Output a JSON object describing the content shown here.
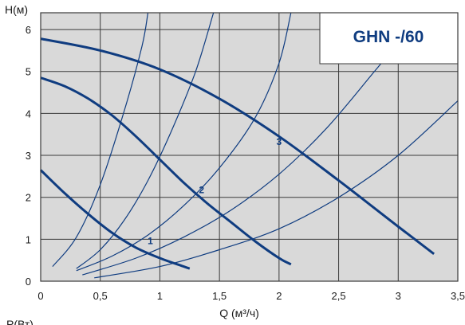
{
  "chart_data": {
    "type": "line",
    "title": "GHN -/60",
    "xlabel": "Q (м³/ч)",
    "ylabel": "H(м)",
    "next_axis_label": "P(Вт)",
    "xlim": [
      0,
      3.5
    ],
    "ylim": [
      0,
      6.4
    ],
    "x_ticks": [
      "0",
      "0,5",
      "1",
      "1,5",
      "2",
      "2,5",
      "3",
      "3,5"
    ],
    "x_tick_values": [
      0,
      0.5,
      1,
      1.5,
      2,
      2.5,
      3,
      3.5
    ],
    "y_ticks": [
      "0",
      "1",
      "2",
      "3",
      "4",
      "5",
      "6"
    ],
    "y_tick_values": [
      0,
      1,
      2,
      3,
      4,
      5,
      6
    ],
    "grid": true,
    "colors": {
      "plot_bg": "#d9d9d9",
      "grid": "#3a3a3a",
      "curve": "#0f3c80",
      "title": "#0f3c80"
    },
    "series": [
      {
        "name": "1",
        "x": [
          0,
          0.2,
          0.4,
          0.6,
          0.8,
          1.0,
          1.2,
          1.25
        ],
        "y": [
          2.65,
          2.1,
          1.6,
          1.15,
          0.8,
          0.55,
          0.35,
          0.3
        ]
      },
      {
        "name": "2",
        "x": [
          0,
          0.2,
          0.4,
          0.6,
          0.8,
          1.0,
          1.2,
          1.4,
          1.6,
          1.8,
          2.0,
          2.1
        ],
        "y": [
          4.85,
          4.65,
          4.35,
          3.95,
          3.45,
          2.9,
          2.35,
          1.85,
          1.4,
          0.95,
          0.55,
          0.4
        ]
      },
      {
        "name": "3",
        "x": [
          0,
          0.5,
          1.0,
          1.5,
          2.0,
          2.5,
          3.0,
          3.3
        ],
        "y": [
          5.78,
          5.5,
          5.05,
          4.35,
          3.45,
          2.4,
          1.3,
          0.65
        ]
      }
    ],
    "system_curves": [
      {
        "x": [
          0.1,
          0.3,
          0.5,
          0.7,
          0.85,
          0.9
        ],
        "y": [
          0.35,
          1.05,
          2.3,
          4.05,
          5.6,
          6.4
        ]
      },
      {
        "x": [
          0.3,
          0.5,
          0.7,
          0.9,
          1.1,
          1.3,
          1.45
        ],
        "y": [
          0.3,
          0.75,
          1.45,
          2.4,
          3.6,
          5.0,
          6.4
        ]
      },
      {
        "x": [
          0.3,
          0.6,
          0.9,
          1.2,
          1.5,
          1.8,
          2.0,
          2.1
        ],
        "y": [
          0.25,
          0.6,
          1.1,
          1.8,
          2.7,
          3.9,
          5.2,
          6.4
        ]
      },
      {
        "x": [
          0.35,
          0.8,
          1.2,
          1.6,
          2.0,
          2.4,
          2.8,
          3.05
        ],
        "y": [
          0.15,
          0.55,
          1.05,
          1.7,
          2.55,
          3.65,
          5.0,
          5.85
        ]
      },
      {
        "x": [
          0.45,
          1.0,
          1.5,
          2.0,
          2.5,
          3.0,
          3.5
        ],
        "y": [
          0.08,
          0.35,
          0.75,
          1.25,
          2.0,
          3.0,
          4.3
        ]
      }
    ],
    "curve_labels": [
      {
        "text": "1",
        "x": 0.92,
        "y": 0.88
      },
      {
        "text": "2",
        "x": 1.35,
        "y": 2.1
      },
      {
        "text": "3",
        "x": 2.0,
        "y": 3.25
      }
    ]
  }
}
